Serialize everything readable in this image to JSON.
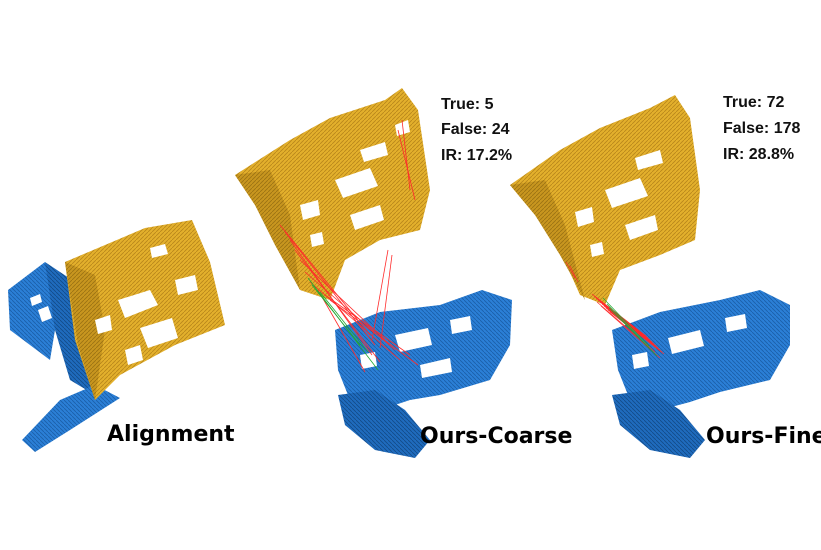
{
  "panels": [
    {
      "caption": "Alignment",
      "stats": []
    },
    {
      "caption": "Ours-Coarse",
      "stats": [
        "True: 5",
        "False: 24",
        "IR: 17.2%"
      ]
    },
    {
      "caption": "Ours-Fine",
      "stats": [
        "True: 72",
        "False: 178",
        "IR: 28.8%"
      ]
    }
  ],
  "colors": {
    "source_cloud": "#e3b02c",
    "target_cloud": "#2b7fd6",
    "false_correspondence": "#ff2a2a",
    "true_correspondence": "#22aa33"
  }
}
